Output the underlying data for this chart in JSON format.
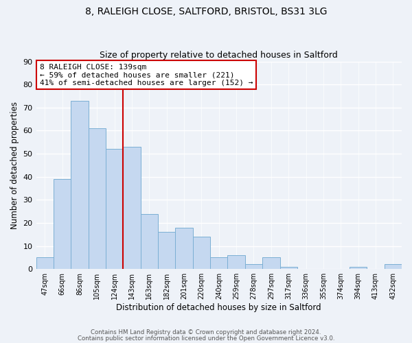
{
  "title1": "8, RALEIGH CLOSE, SALTFORD, BRISTOL, BS31 3LG",
  "title2": "Size of property relative to detached houses in Saltford",
  "xlabel": "Distribution of detached houses by size in Saltford",
  "ylabel": "Number of detached properties",
  "bar_labels": [
    "47sqm",
    "66sqm",
    "86sqm",
    "105sqm",
    "124sqm",
    "143sqm",
    "163sqm",
    "182sqm",
    "201sqm",
    "220sqm",
    "240sqm",
    "259sqm",
    "278sqm",
    "297sqm",
    "317sqm",
    "336sqm",
    "355sqm",
    "374sqm",
    "394sqm",
    "413sqm",
    "432sqm"
  ],
  "bar_values": [
    5,
    39,
    73,
    61,
    52,
    53,
    24,
    16,
    18,
    14,
    5,
    6,
    2,
    5,
    1,
    0,
    0,
    0,
    1,
    0,
    2
  ],
  "bar_color": "#c5d8f0",
  "bar_edge_color": "#7bafd4",
  "vline_x": 5,
  "vline_color": "#cc0000",
  "annotation_title": "8 RALEIGH CLOSE: 139sqm",
  "annotation_line1": "← 59% of detached houses are smaller (221)",
  "annotation_line2": "41% of semi-detached houses are larger (152) →",
  "annotation_box_color": "#ffffff",
  "annotation_box_edge": "#cc0000",
  "ylim": [
    0,
    90
  ],
  "yticks": [
    0,
    10,
    20,
    30,
    40,
    50,
    60,
    70,
    80,
    90
  ],
  "footer1": "Contains HM Land Registry data © Crown copyright and database right 2024.",
  "footer2": "Contains public sector information licensed under the Open Government Licence v3.0.",
  "bg_color": "#eef2f8"
}
